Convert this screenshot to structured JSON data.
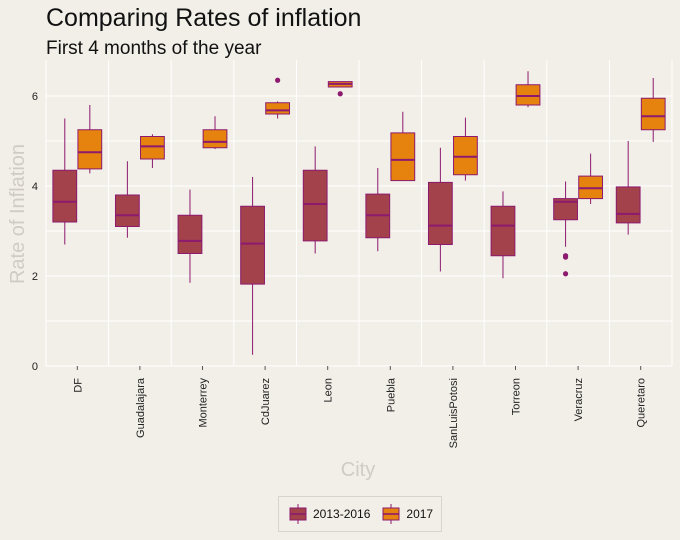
{
  "chart_data": {
    "type": "box",
    "title": "Comparing Rates of inflation",
    "subtitle": "First 4 months of the year",
    "xlabel": "City",
    "ylabel": "Rate of Inflation",
    "ylim": [
      0,
      6.8
    ],
    "yticks": [
      0,
      2,
      4,
      6
    ],
    "grid": true,
    "legend_position": "bottom",
    "categories": [
      "DF",
      "Guadalajara",
      "Monterrey",
      "CdJuarez",
      "Leon",
      "Puebla",
      "SanLuisPotosi",
      "Torreon",
      "Veracruz",
      "Queretaro"
    ],
    "series": [
      {
        "name": "2013-2016",
        "fill": "#a3424b",
        "stroke": "#8c1a6e",
        "boxes": [
          {
            "min": 2.7,
            "q1": 3.2,
            "median": 3.65,
            "q3": 4.35,
            "max": 5.5,
            "outliers": []
          },
          {
            "min": 2.85,
            "q1": 3.1,
            "median": 3.35,
            "q3": 3.8,
            "max": 4.55,
            "outliers": []
          },
          {
            "min": 1.85,
            "q1": 2.5,
            "median": 2.78,
            "q3": 3.35,
            "max": 3.92,
            "outliers": []
          },
          {
            "min": 0.25,
            "q1": 1.82,
            "median": 2.72,
            "q3": 3.55,
            "max": 4.2,
            "outliers": []
          },
          {
            "min": 2.5,
            "q1": 2.78,
            "median": 3.6,
            "q3": 4.35,
            "max": 4.88,
            "outliers": []
          },
          {
            "min": 2.55,
            "q1": 2.85,
            "median": 3.35,
            "q3": 3.82,
            "max": 4.4,
            "outliers": []
          },
          {
            "min": 2.1,
            "q1": 2.7,
            "median": 3.12,
            "q3": 4.08,
            "max": 4.85,
            "outliers": []
          },
          {
            "min": 1.95,
            "q1": 2.45,
            "median": 3.12,
            "q3": 3.55,
            "max": 3.88,
            "outliers": []
          },
          {
            "min": 2.65,
            "q1": 3.25,
            "median": 3.65,
            "q3": 3.72,
            "max": 4.1,
            "outliers": [
              2.42,
              2.45,
              2.05
            ]
          },
          {
            "min": 2.92,
            "q1": 3.18,
            "median": 3.38,
            "q3": 3.98,
            "max": 5.0,
            "outliers": []
          }
        ]
      },
      {
        "name": "2017",
        "fill": "#e6820e",
        "stroke": "#8c1a6e",
        "boxes": [
          {
            "min": 4.28,
            "q1": 4.38,
            "median": 4.75,
            "q3": 5.25,
            "max": 5.8,
            "outliers": []
          },
          {
            "min": 4.4,
            "q1": 4.6,
            "median": 4.88,
            "q3": 5.1,
            "max": 5.15,
            "outliers": []
          },
          {
            "min": 4.82,
            "q1": 4.85,
            "median": 4.98,
            "q3": 5.25,
            "max": 5.55,
            "outliers": []
          },
          {
            "min": 5.5,
            "q1": 5.6,
            "median": 5.68,
            "q3": 5.85,
            "max": 5.88,
            "outliers": [
              6.35
            ]
          },
          {
            "min": 6.2,
            "q1": 6.2,
            "median": 6.27,
            "q3": 6.32,
            "max": 6.32,
            "outliers": [
              6.05
            ]
          },
          {
            "min": 4.12,
            "q1": 4.12,
            "median": 4.58,
            "q3": 5.18,
            "max": 5.65,
            "outliers": []
          },
          {
            "min": 4.12,
            "q1": 4.25,
            "median": 4.65,
            "q3": 5.1,
            "max": 5.52,
            "outliers": []
          },
          {
            "min": 5.75,
            "q1": 5.8,
            "median": 6.0,
            "q3": 6.25,
            "max": 6.55,
            "outliers": []
          },
          {
            "min": 3.6,
            "q1": 3.72,
            "median": 3.95,
            "q3": 4.22,
            "max": 4.72,
            "outliers": []
          },
          {
            "min": 4.98,
            "q1": 5.25,
            "median": 5.55,
            "q3": 5.95,
            "max": 6.4,
            "outliers": []
          }
        ]
      }
    ]
  }
}
